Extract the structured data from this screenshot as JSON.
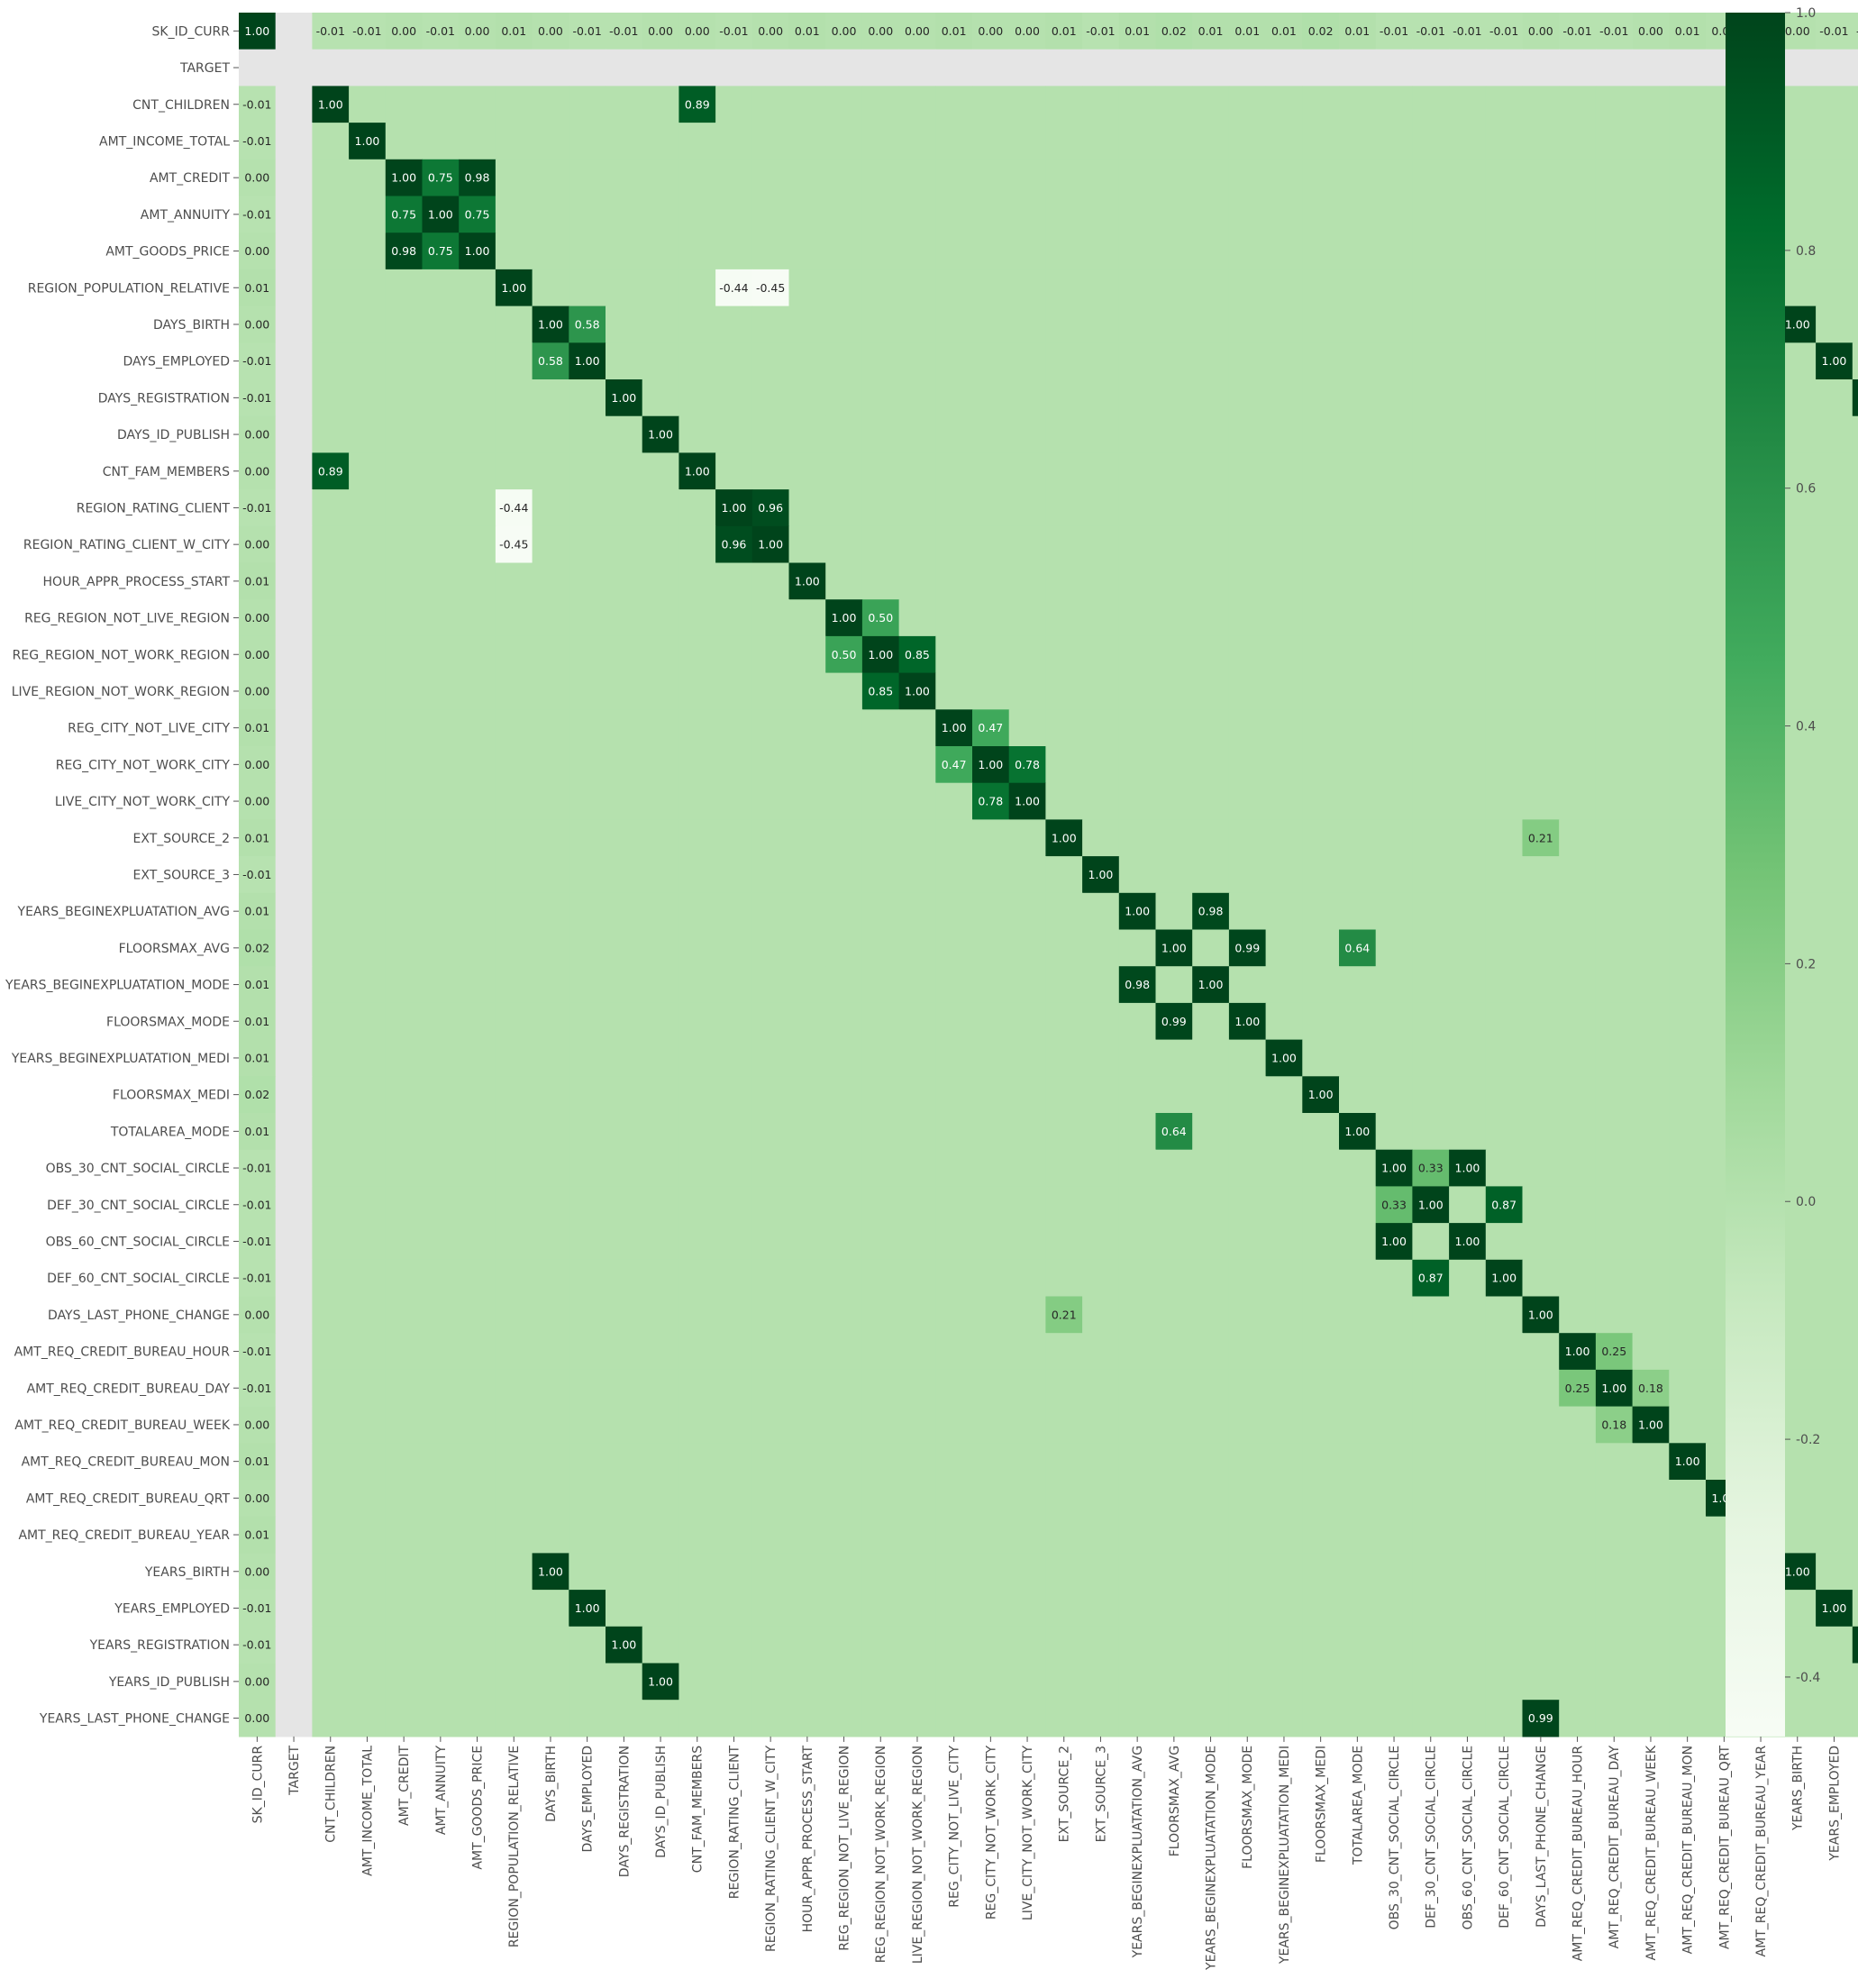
{
  "chart_data": {
    "type": "heatmap",
    "title": "",
    "xlabel": "",
    "ylabel": "",
    "grid": false,
    "value_format": "2 decimals",
    "missing_color": "#e5e5e5",
    "colorscale": "Greens",
    "colorbar": {
      "range": [
        -0.45,
        1.0
      ],
      "ticks": [
        -0.4,
        -0.2,
        0.0,
        0.2,
        0.4,
        0.6,
        0.8,
        1.0
      ],
      "tick_labels": [
        "-0.4",
        "-0.2",
        "0.0",
        "0.2",
        "0.4",
        "0.6",
        "0.8",
        "1.0"
      ],
      "placement": "right"
    },
    "labels": [
      "SK_ID_CURR",
      "TARGET",
      "CNT_CHILDREN",
      "AMT_INCOME_TOTAL",
      "AMT_CREDIT",
      "AMT_ANNUITY",
      "AMT_GOODS_PRICE",
      "REGION_POPULATION_RELATIVE",
      "DAYS_BIRTH",
      "DAYS_EMPLOYED",
      "DAYS_REGISTRATION",
      "DAYS_ID_PUBLISH",
      "CNT_FAM_MEMBERS",
      "REGION_RATING_CLIENT",
      "REGION_RATING_CLIENT_W_CITY",
      "HOUR_APPR_PROCESS_START",
      "REG_REGION_NOT_LIVE_REGION",
      "REG_REGION_NOT_WORK_REGION",
      "LIVE_REGION_NOT_WORK_REGION",
      "REG_CITY_NOT_LIVE_CITY",
      "REG_CITY_NOT_WORK_CITY",
      "LIVE_CITY_NOT_WORK_CITY",
      "EXT_SOURCE_2",
      "EXT_SOURCE_3",
      "YEARS_BEGINEXPLUATATION_AVG",
      "FLOORSMAX_AVG",
      "YEARS_BEGINEXPLUATATION_MODE",
      "FLOORSMAX_MODE",
      "YEARS_BEGINEXPLUATATION_MEDI",
      "FLOORSMAX_MEDI",
      "TOTALAREA_MODE",
      "OBS_30_CNT_SOCIAL_CIRCLE",
      "DEF_30_CNT_SOCIAL_CIRCLE",
      "OBS_60_CNT_SOCIAL_CIRCLE",
      "DEF_60_CNT_SOCIAL_CIRCLE",
      "DAYS_LAST_PHONE_CHANGE",
      "AMT_REQ_CREDIT_BUREAU_HOUR",
      "AMT_REQ_CREDIT_BUREAU_DAY",
      "AMT_REQ_CREDIT_BUREAU_WEEK",
      "AMT_REQ_CREDIT_BUREAU_MON",
      "AMT_REQ_CREDIT_BUREAU_QRT",
      "AMT_REQ_CREDIT_BUREAU_YEAR",
      "YEARS_BIRTH",
      "YEARS_EMPLOYED",
      "YEARS_REGISTRATION",
      "YEARS_ID_PUBLISH",
      "YEARS_LAST_PHONE_CHANGE"
    ],
    "col_sk_id_curr": [
      1.0,
      null,
      -0.01,
      -0.01,
      0.0,
      -0.01,
      0.0,
      0.01,
      0.0,
      -0.01,
      -0.01,
      0.0,
      0.0,
      -0.01,
      0.0,
      0.01,
      0.0,
      0.0,
      0.0,
      0.01,
      0.0,
      0.0,
      0.01,
      -0.01,
      0.01,
      0.02,
      0.01,
      0.01,
      0.01,
      0.02,
      0.01,
      -0.01,
      -0.01,
      -0.01,
      -0.01,
      0.0,
      -0.01,
      -0.01,
      0.0,
      0.01,
      0.0,
      0.01,
      0.0,
      -0.01,
      -0.01,
      0.0,
      0.0
    ],
    "key_values": [
      {
        "a": "CNT_CHILDREN",
        "b": "CNT_FAM_MEMBERS",
        "v": 0.89
      },
      {
        "a": "AMT_CREDIT",
        "b": "AMT_ANNUITY",
        "v": 0.75
      },
      {
        "a": "AMT_CREDIT",
        "b": "AMT_GOODS_PRICE",
        "v": 0.98
      },
      {
        "a": "AMT_ANNUITY",
        "b": "AMT_GOODS_PRICE",
        "v": 0.75
      },
      {
        "a": "DAYS_BIRTH",
        "b": "DAYS_EMPLOYED",
        "v": 0.58
      },
      {
        "a": "DAYS_BIRTH",
        "b": "YEARS_BIRTH",
        "v": 1.0
      },
      {
        "a": "DAYS_EMPLOYED",
        "b": "YEARS_EMPLOYED",
        "v": 1.0
      },
      {
        "a": "DAYS_REGISTRATION",
        "b": "YEARS_REGISTRATION",
        "v": 1.0
      },
      {
        "a": "DAYS_ID_PUBLISH",
        "b": "YEARS_ID_PUBLISH",
        "v": 1.0
      },
      {
        "a": "REGION_POPULATION_RELATIVE",
        "b": "REGION_RATING_CLIENT",
        "v": -0.44
      },
      {
        "a": "REGION_POPULATION_RELATIVE",
        "b": "REGION_RATING_CLIENT_W_CITY",
        "v": -0.45
      },
      {
        "a": "REGION_RATING_CLIENT",
        "b": "REGION_RATING_CLIENT_W_CITY",
        "v": 0.96
      },
      {
        "a": "REG_REGION_NOT_WORK_REGION",
        "b": "LIVE_REGION_NOT_WORK_REGION",
        "v": 0.85
      },
      {
        "a": "REG_REGION_NOT_LIVE_REGION",
        "b": "REG_REGION_NOT_WORK_REGION",
        "v": 0.5
      },
      {
        "a": "REG_CITY_NOT_LIVE_CITY",
        "b": "REG_CITY_NOT_WORK_CITY",
        "v": 0.47
      },
      {
        "a": "REG_CITY_NOT_WORK_CITY",
        "b": "LIVE_CITY_NOT_WORK_CITY",
        "v": 0.78
      },
      {
        "a": "YEARS_BEGINEXPLUATATION_AVG",
        "b": "YEARS_BEGINEXPLUATATION_MODE",
        "v": 0.98
      },
      {
        "a": "FLOORSMAX_AVG",
        "b": "FLOORSMAX_MODE",
        "v": 0.99
      },
      {
        "a": "FLOORSMAX_AVG",
        "b": "TOTALAREA_MODE",
        "v": 0.64
      },
      {
        "a": "OBS_30_CNT_SOCIAL_CIRCLE",
        "b": "DEF_30_CNT_SOCIAL_CIRCLE",
        "v": 0.33
      },
      {
        "a": "OBS_30_CNT_SOCIAL_CIRCLE",
        "b": "OBS_60_CNT_SOCIAL_CIRCLE",
        "v": 1.0
      },
      {
        "a": "DEF_30_CNT_SOCIAL_CIRCLE",
        "b": "DEF_60_CNT_SOCIAL_CIRCLE",
        "v": 0.87
      },
      {
        "a": "DAYS_LAST_PHONE_CHANGE",
        "b": "YEARS_LAST_PHONE_CHANGE",
        "v": 0.99
      },
      {
        "a": "AMT_REQ_CREDIT_BUREAU_HOUR",
        "b": "AMT_REQ_CREDIT_BUREAU_DAY",
        "v": 0.25
      },
      {
        "a": "AMT_REQ_CREDIT_BUREAU_DAY",
        "b": "AMT_REQ_CREDIT_BUREAU_WEEK",
        "v": 0.18
      },
      {
        "a": "EXT_SOURCE_2",
        "b": "DAYS_LAST_PHONE_CHANGE",
        "v": 0.21
      }
    ]
  }
}
